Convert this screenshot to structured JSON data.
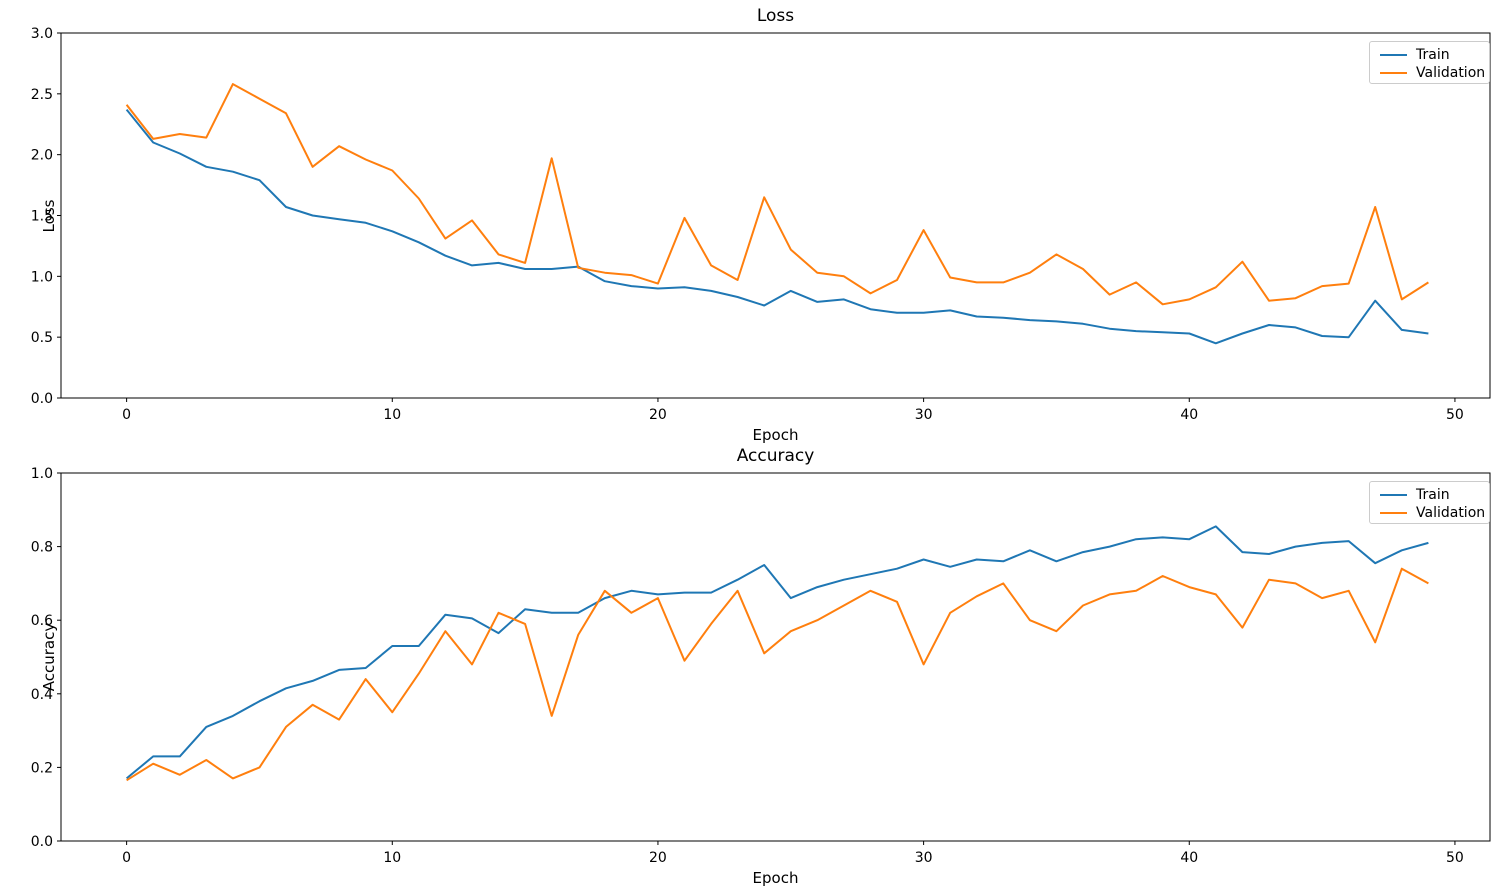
{
  "figure": {
    "background": "#ffffff",
    "text_color": "#000000",
    "legend_labels": [
      "Train",
      "Validation"
    ]
  },
  "chart_data": [
    {
      "type": "line",
      "title": "Loss",
      "xlabel": "Epoch",
      "ylabel": "Loss",
      "xlim": [
        -2.47,
        51.32
      ],
      "ylim": [
        0.0,
        3.0
      ],
      "xticks": [
        0,
        10,
        20,
        30,
        40,
        50
      ],
      "yticks": [
        0.0,
        0.5,
        1.0,
        1.5,
        2.0,
        2.5,
        3.0
      ],
      "grid": false,
      "legend_position": "upper right",
      "x": [
        0,
        1,
        2,
        3,
        4,
        5,
        6,
        7,
        8,
        9,
        10,
        11,
        12,
        13,
        14,
        15,
        16,
        17,
        18,
        19,
        20,
        21,
        22,
        23,
        24,
        25,
        26,
        27,
        28,
        29,
        30,
        31,
        32,
        33,
        34,
        35,
        36,
        37,
        38,
        39,
        40,
        41,
        42,
        43,
        44,
        45,
        46,
        47,
        48,
        49
      ],
      "series": [
        {
          "name": "Train",
          "color": "#1f77b4",
          "values": [
            2.37,
            2.1,
            2.01,
            1.9,
            1.86,
            1.79,
            1.57,
            1.5,
            1.47,
            1.44,
            1.37,
            1.28,
            1.17,
            1.09,
            1.11,
            1.06,
            1.06,
            1.08,
            0.96,
            0.92,
            0.9,
            0.91,
            0.88,
            0.83,
            0.76,
            0.88,
            0.79,
            0.81,
            0.73,
            0.7,
            0.7,
            0.72,
            0.67,
            0.66,
            0.64,
            0.63,
            0.61,
            0.57,
            0.55,
            0.54,
            0.53,
            0.45,
            0.53,
            0.6,
            0.58,
            0.51,
            0.5,
            0.8,
            0.56,
            0.53
          ]
        },
        {
          "name": "Validation",
          "color": "#ff7f0e",
          "values": [
            2.41,
            2.13,
            2.17,
            2.14,
            2.58,
            2.46,
            2.34,
            1.9,
            2.07,
            1.96,
            1.87,
            1.64,
            1.31,
            1.46,
            1.18,
            1.11,
            1.97,
            1.07,
            1.03,
            1.01,
            0.94,
            1.48,
            1.09,
            0.97,
            1.65,
            1.22,
            1.03,
            1.0,
            0.86,
            0.97,
            1.38,
            0.99,
            0.95,
            0.95,
            1.03,
            1.18,
            1.06,
            0.85,
            0.95,
            0.77,
            0.81,
            0.91,
            1.12,
            0.8,
            0.82,
            0.92,
            0.94,
            1.57,
            0.81,
            0.95
          ]
        }
      ]
    },
    {
      "type": "line",
      "title": "Accuracy",
      "xlabel": "Epoch",
      "ylabel": "Accuracy",
      "xlim": [
        -2.47,
        51.32
      ],
      "ylim": [
        0.0,
        1.0
      ],
      "xticks": [
        0,
        10,
        20,
        30,
        40,
        50
      ],
      "yticks": [
        0.0,
        0.2,
        0.4,
        0.6,
        0.8,
        1.0
      ],
      "grid": false,
      "legend_position": "upper right",
      "x": [
        0,
        1,
        2,
        3,
        4,
        5,
        6,
        7,
        8,
        9,
        10,
        11,
        12,
        13,
        14,
        15,
        16,
        17,
        18,
        19,
        20,
        21,
        22,
        23,
        24,
        25,
        26,
        27,
        28,
        29,
        30,
        31,
        32,
        33,
        34,
        35,
        36,
        37,
        38,
        39,
        40,
        41,
        42,
        43,
        44,
        45,
        46,
        47,
        48,
        49
      ],
      "series": [
        {
          "name": "Train",
          "color": "#1f77b4",
          "values": [
            0.17,
            0.23,
            0.23,
            0.31,
            0.34,
            0.38,
            0.415,
            0.435,
            0.465,
            0.47,
            0.53,
            0.53,
            0.615,
            0.605,
            0.565,
            0.63,
            0.62,
            0.62,
            0.66,
            0.68,
            0.67,
            0.675,
            0.675,
            0.71,
            0.75,
            0.66,
            0.69,
            0.71,
            0.725,
            0.74,
            0.765,
            0.745,
            0.765,
            0.76,
            0.79,
            0.76,
            0.785,
            0.8,
            0.82,
            0.825,
            0.82,
            0.855,
            0.785,
            0.78,
            0.8,
            0.81,
            0.815,
            0.755,
            0.79,
            0.81
          ]
        },
        {
          "name": "Validation",
          "color": "#ff7f0e",
          "values": [
            0.165,
            0.21,
            0.18,
            0.22,
            0.17,
            0.2,
            0.31,
            0.37,
            0.33,
            0.44,
            0.35,
            0.455,
            0.57,
            0.48,
            0.62,
            0.59,
            0.34,
            0.56,
            0.68,
            0.62,
            0.66,
            0.49,
            0.59,
            0.68,
            0.51,
            0.57,
            0.6,
            0.64,
            0.68,
            0.65,
            0.48,
            0.62,
            0.665,
            0.7,
            0.6,
            0.57,
            0.64,
            0.67,
            0.68,
            0.72,
            0.69,
            0.67,
            0.58,
            0.71,
            0.7,
            0.66,
            0.68,
            0.54,
            0.74,
            0.7
          ]
        }
      ]
    }
  ]
}
